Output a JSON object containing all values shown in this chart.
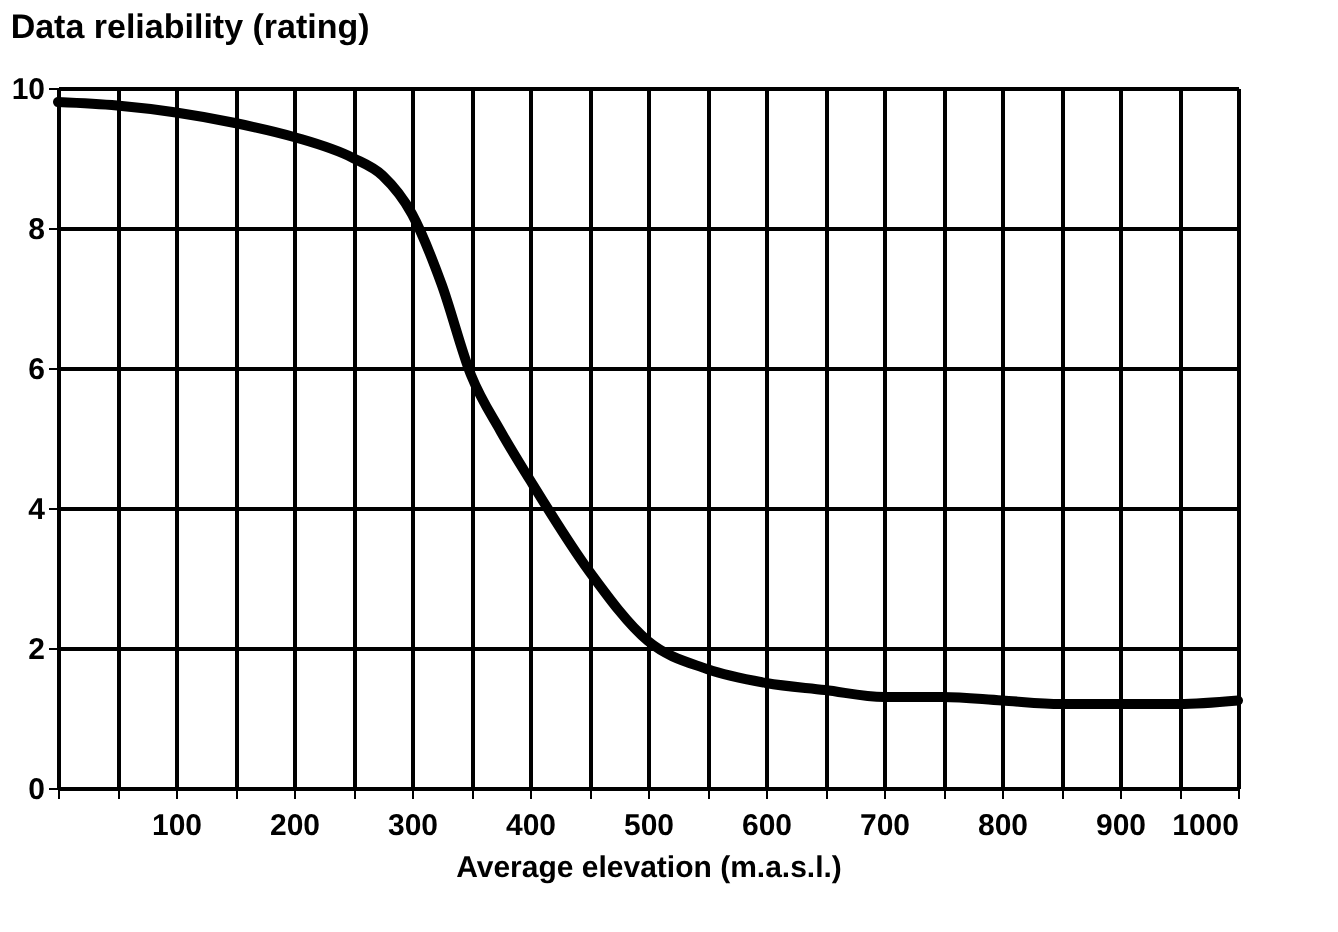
{
  "chart_data": {
    "type": "line",
    "title": "Data reliability (rating)",
    "xlabel": "Average elevation (m.a.s.l.)",
    "x": [
      0,
      50,
      100,
      150,
      200,
      250,
      275,
      300,
      325,
      350,
      375,
      400,
      450,
      500,
      550,
      600,
      650,
      700,
      750,
      800,
      850,
      900,
      950,
      1000
    ],
    "series": [
      {
        "color": "#000000",
        "values": [
          9.8,
          9.75,
          9.65,
          9.5,
          9.3,
          9.0,
          8.75,
          8.2,
          7.2,
          5.9,
          5.1,
          4.4,
          3.1,
          2.1,
          1.7,
          1.5,
          1.4,
          1.3,
          1.3,
          1.25,
          1.2,
          1.2,
          1.2,
          1.25
        ]
      }
    ],
    "xlim": [
      0,
      1000
    ],
    "xticks": [
      {
        "value": 0,
        "label": null
      },
      {
        "value": 50,
        "label": null
      },
      100,
      {
        "value": 150,
        "label": null
      },
      200,
      {
        "value": 250,
        "label": null
      },
      300,
      {
        "value": 350,
        "label": null
      },
      400,
      {
        "value": 450,
        "label": null
      },
      500,
      {
        "value": 550,
        "label": null
      },
      600,
      {
        "value": 650,
        "label": null
      },
      700,
      {
        "value": 750,
        "label": null
      },
      800,
      {
        "value": 850,
        "label": null
      },
      900,
      {
        "value": 950,
        "label": null
      },
      1000
    ],
    "ylim": [
      0,
      10
    ],
    "yticks": [
      0,
      2,
      4,
      6,
      8,
      10
    ],
    "grid": true,
    "marker": "none",
    "line_style": "solid"
  }
}
